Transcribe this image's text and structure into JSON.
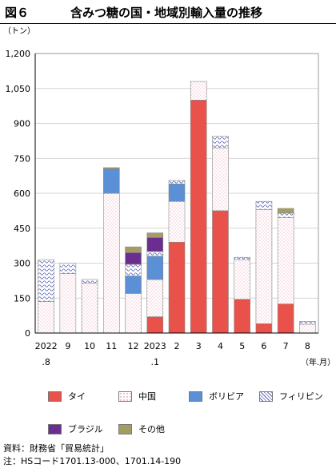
{
  "header": {
    "figure_label": "図６",
    "title": "含みつ糖の国・地域別輸入量の推移"
  },
  "chart_data": {
    "type": "bar",
    "stacked": true,
    "y_unit": "（トン）",
    "x_unit": "（年.月）",
    "categories": [
      {
        "top": "2022",
        "bottom": ".8"
      },
      {
        "top": "9",
        "bottom": ""
      },
      {
        "top": "10",
        "bottom": ""
      },
      {
        "top": "11",
        "bottom": ""
      },
      {
        "top": "12",
        "bottom": ""
      },
      {
        "top": "2023",
        "bottom": ".1"
      },
      {
        "top": "2",
        "bottom": ""
      },
      {
        "top": "3",
        "bottom": ""
      },
      {
        "top": "4",
        "bottom": ""
      },
      {
        "top": "5",
        "bottom": ""
      },
      {
        "top": "6",
        "bottom": ""
      },
      {
        "top": "7",
        "bottom": ""
      },
      {
        "top": "8",
        "bottom": ""
      }
    ],
    "ylim": [
      0,
      1200
    ],
    "yticks": [
      0,
      150,
      300,
      450,
      600,
      750,
      900,
      1050,
      1200
    ],
    "ytick_labels": [
      "0",
      "150",
      "300",
      "450",
      "600",
      "750",
      "900",
      "1,050",
      "1,200"
    ],
    "grid": true,
    "series": [
      {
        "name": "タイ",
        "color": "#e8524a",
        "pattern": "solid",
        "values": [
          0,
          0,
          0,
          0,
          0,
          70,
          390,
          1000,
          525,
          145,
          40,
          125,
          0
        ]
      },
      {
        "name": "中国",
        "color": "#e48aa0",
        "pattern": "dots",
        "values": [
          135,
          255,
          215,
          600,
          170,
          160,
          175,
          80,
          270,
          170,
          490,
          370,
          38
        ]
      },
      {
        "name": "ボリビア",
        "color": "#5b8fd6",
        "pattern": "solid",
        "values": [
          0,
          0,
          0,
          105,
          75,
          100,
          75,
          0,
          0,
          0,
          0,
          0,
          0
        ]
      },
      {
        "name": "フィリピン",
        "color": "#5d66b0",
        "pattern": "waves",
        "values": [
          180,
          45,
          15,
          0,
          50,
          20,
          15,
          0,
          50,
          10,
          35,
          20,
          12
        ]
      },
      {
        "name": "ブラジル",
        "color": "#6b2d8f",
        "pattern": "solid",
        "values": [
          0,
          0,
          0,
          0,
          50,
          60,
          0,
          0,
          0,
          0,
          0,
          0,
          0
        ]
      },
      {
        "name": "その他",
        "color": "#a39d63",
        "pattern": "solid",
        "values": [
          0,
          0,
          0,
          5,
          25,
          20,
          0,
          0,
          0,
          0,
          0,
          20,
          0
        ]
      }
    ]
  },
  "footer": {
    "source": "資料：財務省「貿易統計」",
    "note": "注：HSコード1701.13-000、1701.14-190"
  }
}
